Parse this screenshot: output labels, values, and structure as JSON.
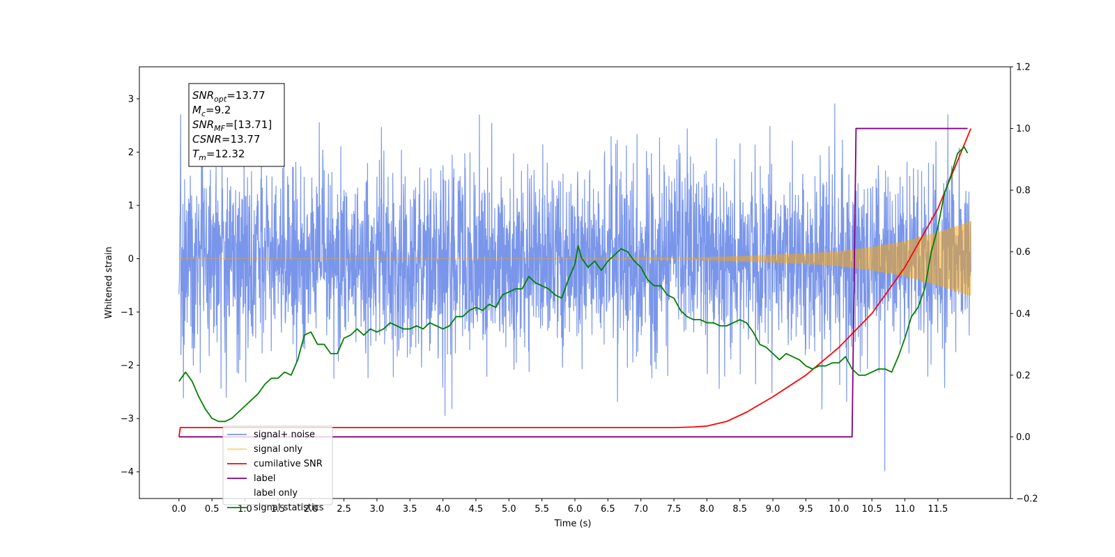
{
  "chart_data": {
    "type": "line",
    "xlabel": "Time (s)",
    "ylabel": "Whitened strain",
    "ylabel_right": "",
    "xlim": [
      -0.6,
      12.6
    ],
    "ylim": [
      -4.5,
      3.6
    ],
    "ylim_right": [
      -0.2,
      1.2
    ],
    "x_ticks": [
      "0.0",
      "0.5",
      "1.0",
      "1.5",
      "2.0",
      "2.5",
      "3.0",
      "3.5",
      "4.0",
      "4.5",
      "5.0",
      "5.5",
      "6.0",
      "6.5",
      "7.0",
      "7.5",
      "8.0",
      "8.5",
      "9.0",
      "9.5",
      "10.0",
      "10.5",
      "11.0",
      "11.5"
    ],
    "y_ticks_left": [
      "3",
      "2",
      "1",
      "0",
      "−1",
      "−2",
      "−3",
      "−4"
    ],
    "y_ticks_right": [
      "1.2",
      "1.0",
      "0.8",
      "0.6",
      "0.4",
      "0.2",
      "0.0",
      "−0.2"
    ],
    "grid": false,
    "legend_position": "bottom-left",
    "annotation": {
      "lines": [
        {
          "sym": "SNR",
          "sub": "opt",
          "val": "=13.77"
        },
        {
          "sym": "M",
          "sub": "c",
          "val": "=9.2"
        },
        {
          "sym": "SNR",
          "sub": "MF",
          "val": "=[13.71]"
        },
        {
          "sym": "CSNR",
          "sub": "",
          "val": "=13.77"
        },
        {
          "sym": "T",
          "sub": "m",
          "val": "=12.32"
        }
      ]
    },
    "series": [
      {
        "name": "signal+ noise",
        "axis": "left",
        "color": "#4169e1",
        "opacity": 0.7,
        "envelope": {
          "x": [
            0,
            12
          ],
          "approx_range": [
            -3.0,
            3.0
          ]
        }
      },
      {
        "name": "signal only",
        "axis": "left",
        "color": "#ffa500",
        "opacity": 0.5,
        "envelope_amplitude": {
          "x": [
            0.0,
            6.0,
            7.5,
            8.5,
            9.5,
            10.0,
            10.5,
            11.0,
            11.5,
            12.0
          ],
          "y": [
            0.0,
            0.0,
            0.01,
            0.05,
            0.1,
            0.14,
            0.22,
            0.33,
            0.5,
            0.7
          ]
        }
      },
      {
        "name": "cumilative SNR",
        "axis": "right",
        "color": "#ff0000",
        "x": [
          0.0,
          0.02,
          7.5,
          7.8,
          8.0,
          8.3,
          8.6,
          9.0,
          9.5,
          10.0,
          10.5,
          11.0,
          11.5,
          12.0
        ],
        "y": [
          0.0,
          0.03,
          0.03,
          0.032,
          0.035,
          0.05,
          0.08,
          0.13,
          0.2,
          0.29,
          0.4,
          0.55,
          0.74,
          1.0
        ]
      },
      {
        "name": "label",
        "axis": "right",
        "color": "#800080",
        "x": [
          0.0,
          10.2,
          10.26,
          11.95
        ],
        "y": [
          0.0,
          0.0,
          1.0,
          1.0
        ]
      },
      {
        "name": "label only",
        "hidden": true
      },
      {
        "name": "signal statistics",
        "axis": "right",
        "color": "#008000",
        "x": [
          0.0,
          0.1,
          0.2,
          0.3,
          0.4,
          0.5,
          0.6,
          0.7,
          0.8,
          0.9,
          1.0,
          1.1,
          1.2,
          1.3,
          1.4,
          1.5,
          1.6,
          1.7,
          1.8,
          1.9,
          2.0,
          2.1,
          2.2,
          2.3,
          2.4,
          2.5,
          2.6,
          2.7,
          2.8,
          2.9,
          3.0,
          3.1,
          3.2,
          3.3,
          3.4,
          3.5,
          3.6,
          3.7,
          3.8,
          3.9,
          4.0,
          4.1,
          4.2,
          4.3,
          4.4,
          4.5,
          4.6,
          4.7,
          4.8,
          4.9,
          5.0,
          5.1,
          5.2,
          5.3,
          5.4,
          5.5,
          5.6,
          5.7,
          5.8,
          5.9,
          6.0,
          6.05,
          6.1,
          6.2,
          6.3,
          6.4,
          6.5,
          6.6,
          6.7,
          6.8,
          6.9,
          7.0,
          7.1,
          7.2,
          7.3,
          7.4,
          7.5,
          7.6,
          7.7,
          7.8,
          7.9,
          8.0,
          8.1,
          8.2,
          8.3,
          8.4,
          8.5,
          8.6,
          8.7,
          8.8,
          8.9,
          9.0,
          9.1,
          9.2,
          9.3,
          9.4,
          9.5,
          9.6,
          9.7,
          9.8,
          9.9,
          10.0,
          10.1,
          10.2,
          10.3,
          10.4,
          10.5,
          10.6,
          10.7,
          10.8,
          10.9,
          11.0,
          11.1,
          11.2,
          11.3,
          11.4,
          11.5,
          11.6,
          11.7,
          11.8,
          11.9,
          11.95
        ],
        "y": [
          0.18,
          0.21,
          0.18,
          0.13,
          0.09,
          0.06,
          0.05,
          0.05,
          0.06,
          0.08,
          0.1,
          0.12,
          0.14,
          0.17,
          0.19,
          0.19,
          0.21,
          0.2,
          0.25,
          0.33,
          0.34,
          0.3,
          0.3,
          0.27,
          0.27,
          0.32,
          0.33,
          0.35,
          0.33,
          0.35,
          0.34,
          0.35,
          0.37,
          0.36,
          0.35,
          0.35,
          0.36,
          0.35,
          0.37,
          0.36,
          0.35,
          0.36,
          0.39,
          0.39,
          0.41,
          0.42,
          0.41,
          0.43,
          0.42,
          0.46,
          0.47,
          0.48,
          0.48,
          0.52,
          0.5,
          0.49,
          0.48,
          0.46,
          0.45,
          0.51,
          0.56,
          0.62,
          0.58,
          0.55,
          0.57,
          0.54,
          0.57,
          0.59,
          0.61,
          0.6,
          0.57,
          0.55,
          0.51,
          0.49,
          0.49,
          0.46,
          0.45,
          0.41,
          0.39,
          0.38,
          0.38,
          0.37,
          0.37,
          0.36,
          0.36,
          0.37,
          0.38,
          0.37,
          0.34,
          0.3,
          0.29,
          0.27,
          0.25,
          0.27,
          0.26,
          0.25,
          0.23,
          0.22,
          0.23,
          0.23,
          0.24,
          0.24,
          0.26,
          0.22,
          0.2,
          0.2,
          0.21,
          0.22,
          0.22,
          0.21,
          0.26,
          0.32,
          0.39,
          0.42,
          0.48,
          0.6,
          0.68,
          0.79,
          0.85,
          0.92,
          0.94,
          0.92
        ]
      }
    ]
  }
}
